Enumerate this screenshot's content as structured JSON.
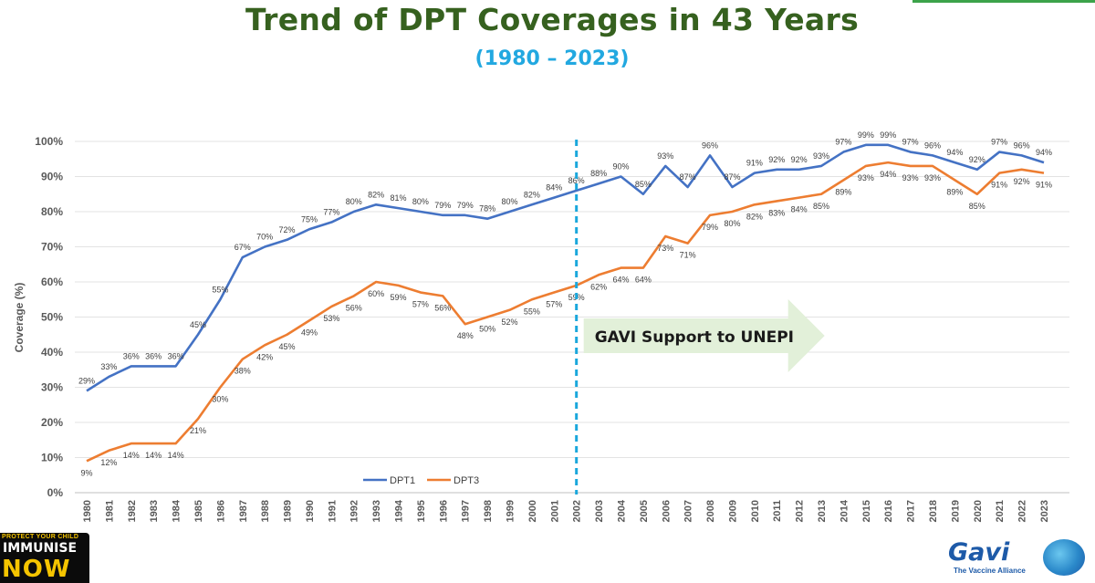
{
  "title": "Trend of DPT Coverages in 43 Years",
  "subtitle": "(1980 – 2023)",
  "badge": {
    "small": "PROTECT YOUR CHILD",
    "line1": "IMMUNISE",
    "line2": "NOW"
  },
  "logo": {
    "name": "Gavi",
    "tagline": "The Vaccine Alliance"
  },
  "colors": {
    "dpt1": "#4472c4",
    "dpt3": "#ed7d31",
    "title": "#36611f",
    "subtitle": "#22a8e0",
    "divider": "#1aa7dc",
    "arrow": "#e2f0d9"
  },
  "chart_data": {
    "type": "line",
    "title": "",
    "xlabel": "",
    "ylabel": "Coverage (%)",
    "ylim": [
      0,
      100
    ],
    "y_ticks": [
      "0%",
      "10%",
      "20%",
      "30%",
      "40%",
      "50%",
      "60%",
      "70%",
      "80%",
      "90%",
      "100%"
    ],
    "grid": true,
    "legend_position": "bottom",
    "categories": [
      "1980",
      "1981",
      "1982",
      "1983",
      "1984",
      "1985",
      "1986",
      "1987",
      "1988",
      "1989",
      "1990",
      "1991",
      "1992",
      "1993",
      "1994",
      "1995",
      "1996",
      "1997",
      "1998",
      "1999",
      "2000",
      "2001",
      "2002",
      "2003",
      "2004",
      "2005",
      "2006",
      "2007",
      "2008",
      "2009",
      "2010",
      "2011",
      "2012",
      "2013",
      "2014",
      "2015",
      "2016",
      "2017",
      "2018",
      "2019",
      "2020",
      "2021",
      "2022",
      "2023"
    ],
    "series": [
      {
        "name": "DPT1",
        "values": [
          29,
          33,
          36,
          36,
          36,
          45,
          55,
          67,
          70,
          72,
          75,
          77,
          80,
          82,
          81,
          80,
          79,
          79,
          78,
          80,
          82,
          84,
          86,
          88,
          90,
          85,
          93,
          87,
          96,
          87,
          91,
          92,
          92,
          93,
          97,
          99,
          99,
          97,
          96,
          94,
          92,
          97,
          96,
          94
        ]
      },
      {
        "name": "DPT3",
        "values": [
          9,
          12,
          14,
          14,
          14,
          21,
          30,
          38,
          42,
          45,
          49,
          53,
          56,
          60,
          59,
          57,
          56,
          48,
          50,
          52,
          55,
          57,
          59,
          62,
          64,
          64,
          73,
          71,
          79,
          80,
          82,
          83,
          84,
          85,
          89,
          93,
          94,
          93,
          93,
          89,
          85,
          91,
          92,
          91
        ]
      }
    ],
    "annotations": [
      {
        "type": "vertical_line",
        "x": "2002",
        "style": "dashed"
      },
      {
        "type": "arrow_label",
        "text": "GAVI Support to UNEPI",
        "from_x": "2002",
        "direction": "right"
      }
    ]
  }
}
